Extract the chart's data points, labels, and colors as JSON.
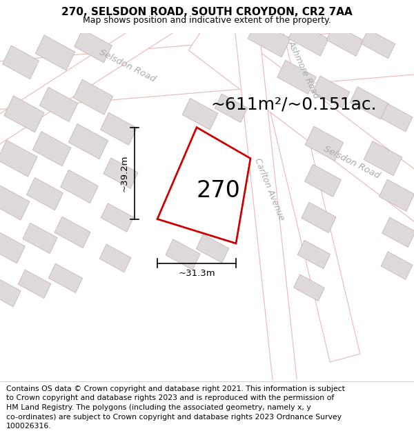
{
  "title": "270, SELSDON ROAD, SOUTH CROYDON, CR2 7AA",
  "subtitle": "Map shows position and indicative extent of the property.",
  "area_label": "~611m²/~0.151ac.",
  "property_number": "270",
  "width_label": "~31.3m",
  "height_label": "~39.2m",
  "road_label_selsdon_top": "Selsdon Road",
  "road_label_selsdon_br": "Selsdon Road",
  "road_label_carlton": "Carlton Avenue",
  "road_label_ashmore": "Ashmore Road",
  "map_bg": "#f2efef",
  "road_fill": "#ffffff",
  "road_edge": "#e8b8b8",
  "block_fill": "#dedad9",
  "block_edge": "#c8b4b4",
  "property_fill": "#ffffff",
  "property_outline": "#cc0000",
  "footer_lines": [
    "Contains OS data © Crown copyright and database right 2021. This information is subject",
    "to Crown copyright and database rights 2023 and is reproduced with the permission of",
    "HM Land Registry. The polygons (including the associated geometry, namely x, y",
    "co-ordinates) are subject to Crown copyright and database rights 2023 Ordnance Survey",
    "100026316."
  ],
  "title_fontsize": 11,
  "subtitle_fontsize": 9,
  "footer_fontsize": 7.8,
  "area_fontsize": 18,
  "number_fontsize": 24,
  "road_label_fontsize": 9.5,
  "dim_fontsize": 9.5
}
